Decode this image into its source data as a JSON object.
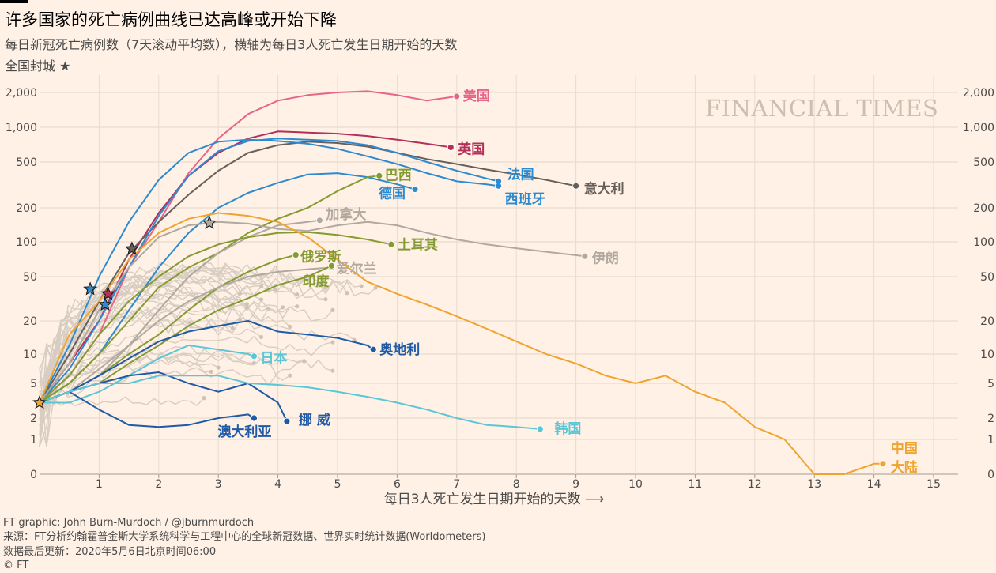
{
  "header": {
    "title": "许多国家的死亡病例曲线已达高峰或开始下降",
    "subtitle": "每日新冠死亡病例数（7天滚动平均数），横轴为每日3人死亡发生日期开始的天数",
    "legend": "全国封城 ★"
  },
  "watermark": "FINANCIAL TIMES",
  "footer": {
    "credit": "FT graphic: John Burn-Murdoch / @jburnmurdoch",
    "source": "来源：FT分析约翰霍普金斯大学系统科学与工程中心的全球新冠数据、世界实时统计数据(Worldometers)",
    "updated": "数据最后更新：2020年5月6日北京时间06:00",
    "copyright": "© FT"
  },
  "chart_data": {
    "type": "line",
    "title": "许多国家的死亡病例曲线已达高峰或开始下降",
    "xlabel": "每日3人死亡发生日期开始的天数 ⟶",
    "ylabel": "",
    "yscale": "log",
    "xlim": [
      0,
      15.8
    ],
    "x_ticks": [
      1,
      2,
      3,
      4,
      5,
      6,
      7,
      8,
      9,
      10,
      11,
      12,
      13,
      14,
      15
    ],
    "y_ticks": [
      {
        "v": 2000,
        "label": "2,000"
      },
      {
        "v": 1000,
        "label": "1,000"
      },
      {
        "v": 500,
        "label": "500"
      },
      {
        "v": 200,
        "label": "200"
      },
      {
        "v": 100,
        "label": "100"
      },
      {
        "v": 50,
        "label": "50"
      },
      {
        "v": 20,
        "label": "20"
      },
      {
        "v": 10,
        "label": "10"
      },
      {
        "v": 5,
        "label": "5"
      },
      {
        "v": 2,
        "label": "2"
      },
      {
        "v": 1,
        "label": "1"
      },
      {
        "v": 0,
        "label": "0"
      }
    ],
    "grid": true,
    "series": [
      {
        "name": "美国",
        "color": "#e8658a",
        "label_lines": [
          "美国"
        ],
        "points": [
          [
            0,
            3
          ],
          [
            0.5,
            6
          ],
          [
            1,
            15
          ],
          [
            1.5,
            60
          ],
          [
            2,
            150
          ],
          [
            2.5,
            400
          ],
          [
            3,
            800
          ],
          [
            3.5,
            1300
          ],
          [
            4,
            1700
          ],
          [
            4.5,
            1900
          ],
          [
            5,
            2000
          ],
          [
            5.5,
            2050
          ],
          [
            6,
            1900
          ],
          [
            6.5,
            1700
          ],
          [
            7,
            1850
          ]
        ]
      },
      {
        "name": "英国",
        "color": "#b4305a",
        "label_lines": [
          "英国"
        ],
        "lockdown": 1.15,
        "points": [
          [
            0,
            3
          ],
          [
            0.5,
            8
          ],
          [
            1,
            20
          ],
          [
            1.5,
            70
          ],
          [
            2,
            180
          ],
          [
            2.5,
            380
          ],
          [
            3,
            600
          ],
          [
            3.5,
            800
          ],
          [
            4,
            920
          ],
          [
            4.5,
            900
          ],
          [
            5,
            880
          ],
          [
            5.5,
            840
          ],
          [
            6,
            780
          ],
          [
            6.5,
            720
          ],
          [
            6.9,
            670
          ]
        ]
      },
      {
        "name": "意大利",
        "color": "#66605c",
        "label_lines": [
          "意大利"
        ],
        "lockdown": 1.55,
        "points": [
          [
            0,
            3
          ],
          [
            0.5,
            10
          ],
          [
            1,
            30
          ],
          [
            1.5,
            80
          ],
          [
            2,
            150
          ],
          [
            2.5,
            260
          ],
          [
            3,
            420
          ],
          [
            3.5,
            600
          ],
          [
            4,
            700
          ],
          [
            4.5,
            750
          ],
          [
            5,
            730
          ],
          [
            5.5,
            680
          ],
          [
            6,
            600
          ],
          [
            6.5,
            530
          ],
          [
            7,
            480
          ],
          [
            7.5,
            430
          ],
          [
            8,
            390
          ],
          [
            8.5,
            350
          ],
          [
            9,
            310
          ]
        ]
      },
      {
        "name": "法国",
        "color": "#2e8ace",
        "label_lines": [
          "法国"
        ],
        "lockdown": 1.1,
        "points": [
          [
            0,
            3
          ],
          [
            0.5,
            7
          ],
          [
            1,
            20
          ],
          [
            1.5,
            60
          ],
          [
            2,
            170
          ],
          [
            2.5,
            380
          ],
          [
            3,
            620
          ],
          [
            3.5,
            760
          ],
          [
            4,
            800
          ],
          [
            4.5,
            780
          ],
          [
            5,
            760
          ],
          [
            5.5,
            700
          ],
          [
            6,
            600
          ],
          [
            6.5,
            500
          ],
          [
            7,
            420
          ],
          [
            7.5,
            360
          ],
          [
            7.7,
            340
          ]
        ]
      },
      {
        "name": "西班牙",
        "color": "#2e8ace",
        "label_lines": [
          "西班牙"
        ],
        "lockdown": 0.85,
        "points": [
          [
            0,
            3
          ],
          [
            0.5,
            12
          ],
          [
            1,
            50
          ],
          [
            1.5,
            150
          ],
          [
            2,
            350
          ],
          [
            2.5,
            600
          ],
          [
            3,
            750
          ],
          [
            3.5,
            780
          ],
          [
            4,
            760
          ],
          [
            4.5,
            720
          ],
          [
            5,
            650
          ],
          [
            5.5,
            560
          ],
          [
            6,
            480
          ],
          [
            6.5,
            400
          ],
          [
            7,
            340
          ],
          [
            7.5,
            320
          ],
          [
            7.7,
            310
          ]
        ]
      },
      {
        "name": "德国",
        "color": "#2e8ace",
        "label_lines": [
          "德国"
        ],
        "points": [
          [
            0,
            3
          ],
          [
            0.5,
            5
          ],
          [
            1,
            10
          ],
          [
            1.5,
            25
          ],
          [
            2,
            60
          ],
          [
            2.5,
            120
          ],
          [
            3,
            200
          ],
          [
            3.5,
            270
          ],
          [
            4,
            330
          ],
          [
            4.5,
            390
          ],
          [
            5,
            400
          ],
          [
            5.5,
            370
          ],
          [
            6,
            320
          ],
          [
            6.3,
            290
          ]
        ]
      },
      {
        "name": "巴西",
        "color": "#859a32",
        "label_lines": [
          "巴西"
        ],
        "points": [
          [
            0,
            3
          ],
          [
            0.5,
            5
          ],
          [
            1,
            10
          ],
          [
            1.5,
            20
          ],
          [
            2,
            40
          ],
          [
            2.5,
            60
          ],
          [
            3,
            80
          ],
          [
            3.5,
            120
          ],
          [
            4,
            160
          ],
          [
            4.5,
            200
          ],
          [
            5,
            280
          ],
          [
            5.5,
            370
          ],
          [
            5.7,
            380
          ]
        ]
      },
      {
        "name": "加拿大",
        "color": "#b1a99f",
        "label_lines": [
          "加拿大"
        ],
        "points": [
          [
            0,
            3
          ],
          [
            0.5,
            4
          ],
          [
            1,
            6
          ],
          [
            1.5,
            12
          ],
          [
            2,
            25
          ],
          [
            2.5,
            50
          ],
          [
            3,
            80
          ],
          [
            3.5,
            110
          ],
          [
            4,
            140
          ],
          [
            4.5,
            150
          ],
          [
            4.7,
            155
          ]
        ]
      },
      {
        "name": "土耳其",
        "color": "#859a32",
        "label_lines": [
          "土耳其"
        ],
        "points": [
          [
            0,
            3
          ],
          [
            0.5,
            6
          ],
          [
            1,
            15
          ],
          [
            1.5,
            30
          ],
          [
            2,
            50
          ],
          [
            2.5,
            75
          ],
          [
            3,
            95
          ],
          [
            3.5,
            110
          ],
          [
            4,
            120
          ],
          [
            4.5,
            122
          ],
          [
            5,
            115
          ],
          [
            5.5,
            105
          ],
          [
            5.9,
            95
          ]
        ]
      },
      {
        "name": "伊朗",
        "color": "#b1a99f",
        "label_lines": [
          "伊朗"
        ],
        "lockdown": 2.85,
        "points": [
          [
            0,
            3
          ],
          [
            0.5,
            8
          ],
          [
            1,
            25
          ],
          [
            1.5,
            60
          ],
          [
            2,
            110
          ],
          [
            2.5,
            140
          ],
          [
            3,
            150
          ],
          [
            3.5,
            145
          ],
          [
            4,
            130
          ],
          [
            4.5,
            125
          ],
          [
            5,
            140
          ],
          [
            5.5,
            150
          ],
          [
            6,
            140
          ],
          [
            6.5,
            120
          ],
          [
            7,
            105
          ],
          [
            7.5,
            95
          ],
          [
            8,
            88
          ],
          [
            8.5,
            82
          ],
          [
            9.15,
            75
          ]
        ]
      },
      {
        "name": "俄罗斯",
        "color": "#859a32",
        "label_lines": [
          "俄罗斯"
        ],
        "points": [
          [
            0,
            3
          ],
          [
            0.5,
            4
          ],
          [
            1,
            6
          ],
          [
            1.5,
            10
          ],
          [
            2,
            15
          ],
          [
            2.5,
            25
          ],
          [
            3,
            40
          ],
          [
            3.5,
            55
          ],
          [
            4,
            70
          ],
          [
            4.3,
            77
          ]
        ]
      },
      {
        "name": "爱尔兰",
        "color": "#b1a99f",
        "label_lines": [
          "爱尔兰"
        ],
        "points": [
          [
            0,
            3
          ],
          [
            0.5,
            4
          ],
          [
            1,
            7
          ],
          [
            1.5,
            12
          ],
          [
            2,
            20
          ],
          [
            2.5,
            30
          ],
          [
            3,
            40
          ],
          [
            3.5,
            50
          ],
          [
            4,
            55
          ],
          [
            4.5,
            58
          ],
          [
            4.9,
            60
          ]
        ]
      },
      {
        "name": "印度",
        "color": "#859a32",
        "label_lines": [
          "印度"
        ],
        "points": [
          [
            0,
            3
          ],
          [
            0.5,
            4
          ],
          [
            1,
            5
          ],
          [
            1.5,
            8
          ],
          [
            2,
            12
          ],
          [
            2.5,
            18
          ],
          [
            3,
            25
          ],
          [
            3.5,
            32
          ],
          [
            4,
            42
          ],
          [
            4.5,
            50
          ],
          [
            4.9,
            62
          ]
        ]
      },
      {
        "name": "奥地利",
        "color": "#1f5aa6",
        "label_lines": [
          "奥地利"
        ],
        "points": [
          [
            0,
            3
          ],
          [
            0.5,
            4
          ],
          [
            1,
            6
          ],
          [
            1.5,
            9
          ],
          [
            2,
            13
          ],
          [
            2.5,
            16
          ],
          [
            3,
            18
          ],
          [
            3.5,
            20
          ],
          [
            4,
            16
          ],
          [
            4.5,
            15
          ],
          [
            5,
            14
          ],
          [
            5.5,
            12
          ],
          [
            5.6,
            11
          ]
        ]
      },
      {
        "name": "日本",
        "color": "#5bc6d6",
        "label_lines": [
          "日本"
        ],
        "points": [
          [
            0,
            3
          ],
          [
            0.5,
            3
          ],
          [
            1,
            4
          ],
          [
            1.5,
            6
          ],
          [
            2,
            9
          ],
          [
            2.5,
            12
          ],
          [
            3,
            11
          ],
          [
            3.5,
            10
          ],
          [
            3.6,
            9.5
          ]
        ]
      },
      {
        "name": "挪威",
        "color": "#1f5aa6",
        "label_lines": [
          "挪 威"
        ],
        "points": [
          [
            0,
            3
          ],
          [
            0.5,
            4
          ],
          [
            1,
            5
          ],
          [
            1.5,
            6
          ],
          [
            2,
            6.5
          ],
          [
            2.5,
            5
          ],
          [
            3,
            4
          ],
          [
            3.5,
            5
          ],
          [
            4,
            3
          ],
          [
            4.15,
            1.8
          ]
        ]
      },
      {
        "name": "澳大利亚",
        "color": "#1f5aa6",
        "label_lines": [
          "澳大利亚"
        ],
        "points": [
          [
            0,
            3
          ],
          [
            0.5,
            4
          ],
          [
            1,
            2.5
          ],
          [
            1.5,
            1.6
          ],
          [
            2,
            1.5
          ],
          [
            2.5,
            1.6
          ],
          [
            3,
            2
          ],
          [
            3.5,
            2.2
          ],
          [
            3.6,
            2
          ]
        ]
      },
      {
        "name": "韩国",
        "color": "#5bc6d6",
        "label_lines": [
          "韩国"
        ],
        "points": [
          [
            0,
            3
          ],
          [
            0.5,
            4
          ],
          [
            1,
            5
          ],
          [
            1.5,
            5
          ],
          [
            2,
            6
          ],
          [
            2.5,
            6
          ],
          [
            3,
            6
          ],
          [
            3.5,
            5
          ],
          [
            4,
            4.8
          ],
          [
            4.5,
            4.5
          ],
          [
            5,
            4
          ],
          [
            5.5,
            3.5
          ],
          [
            6,
            3
          ],
          [
            6.5,
            2.5
          ],
          [
            7,
            2
          ],
          [
            7.5,
            1.6
          ],
          [
            8,
            1.5
          ],
          [
            8.4,
            1.4
          ]
        ]
      },
      {
        "name": "中国大陆",
        "color": "#f0a430",
        "label_lines": [
          "中国",
          "大陆"
        ],
        "lockdown": 0,
        "points": [
          [
            0,
            3
          ],
          [
            0.5,
            15
          ],
          [
            1,
            30
          ],
          [
            1.5,
            70
          ],
          [
            2,
            120
          ],
          [
            2.5,
            160
          ],
          [
            3,
            180
          ],
          [
            3.5,
            170
          ],
          [
            4,
            150
          ],
          [
            4.5,
            110
          ],
          [
            5,
            70
          ],
          [
            5.5,
            45
          ],
          [
            6,
            35
          ],
          [
            6.5,
            28
          ],
          [
            7,
            22
          ],
          [
            7.5,
            17
          ],
          [
            8,
            13
          ],
          [
            8.5,
            10
          ],
          [
            9,
            8
          ],
          [
            9.5,
            6
          ],
          [
            10,
            5
          ],
          [
            10.5,
            6
          ],
          [
            11,
            4
          ],
          [
            11.5,
            3
          ],
          [
            12,
            1.5
          ],
          [
            12.5,
            1
          ],
          [
            13,
            0
          ],
          [
            13.5,
            0
          ],
          [
            14,
            0.3
          ],
          [
            14.15,
            0.3
          ]
        ]
      }
    ]
  }
}
